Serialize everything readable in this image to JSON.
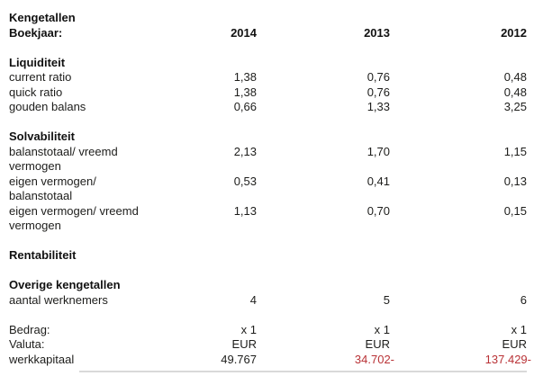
{
  "report": {
    "title": "Kengetallen",
    "header": {
      "label": "Boekjaar:",
      "years": [
        "2014",
        "2013",
        "2012"
      ]
    },
    "sections": [
      {
        "heading": "Liquiditeit",
        "rows": [
          {
            "label": "current ratio",
            "values": [
              "1,38",
              "0,76",
              "0,48"
            ]
          },
          {
            "label": "quick ratio",
            "values": [
              "1,38",
              "0,76",
              "0,48"
            ]
          },
          {
            "label": "gouden balans",
            "values": [
              "0,66",
              "1,33",
              "3,25"
            ]
          }
        ]
      },
      {
        "heading": "Solvabiliteit",
        "rows": [
          {
            "label": "balanstotaal/ vreemd vermogen",
            "values": [
              "2,13",
              "1,70",
              "1,15"
            ]
          },
          {
            "label": "eigen vermogen/ balanstotaal",
            "values": [
              "0,53",
              "0,41",
              "0,13"
            ]
          },
          {
            "label": "eigen vermogen/ vreemd vermogen",
            "values": [
              "1,13",
              "0,70",
              "0,15"
            ]
          }
        ]
      },
      {
        "heading": "Rentabiliteit",
        "rows": []
      },
      {
        "heading": "Overige kengetallen",
        "rows": [
          {
            "label": "aantal werknemers",
            "values": [
              "4",
              "5",
              "6"
            ]
          }
        ]
      }
    ],
    "footer": {
      "rows": [
        {
          "label": "Bedrag:",
          "values": [
            "x 1",
            "x 1",
            "x 1"
          ]
        },
        {
          "label": "Valuta:",
          "values": [
            "EUR",
            "EUR",
            "EUR"
          ]
        },
        {
          "label": "werkkapitaal",
          "values": [
            "49.767",
            "34.702-",
            "137.429-"
          ]
        }
      ]
    },
    "colors": {
      "text": "#1d1d1b",
      "heading": "#111111",
      "negative": "#b93236",
      "bottom_rule": "#d9d9d9"
    }
  }
}
